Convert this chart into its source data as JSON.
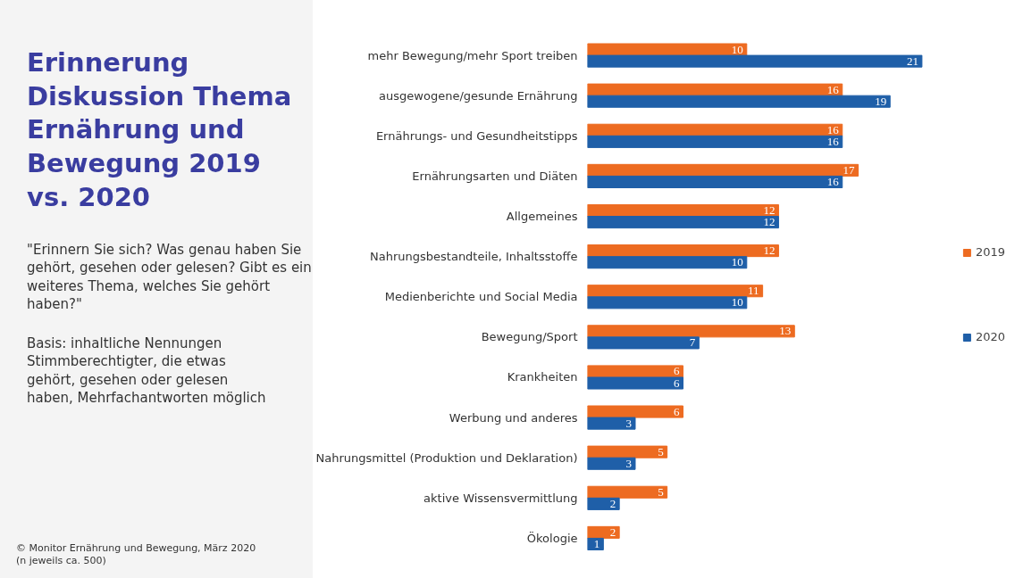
{
  "chart_data": {
    "type": "bar",
    "orientation": "horizontal",
    "title": "Erinnerung Diskussion Thema Ernährung und Bewegung 2019 vs. 2020",
    "subtitle": "\"Erinnern Sie sich? Was genau haben Sie gehört, gesehen oder gelesen? Gibt es ein weiteres Thema, welches Sie gehört haben?\"",
    "annotations": [
      "Basis: inhaltliche Nennungen Stimmberechtigter, die etwas gehört, gesehen oder gelesen haben, Mehrfachantworten möglich",
      "© Monitor Ernährung und Bewegung, März 2020 (n jeweils ca. 500)"
    ],
    "categories": [
      "mehr Bewegung/mehr Sport treiben",
      "ausgewogene/gesunde Ernährung",
      "Ernährungs- und Gesundheitstipps",
      "Ernährungsarten und Diäten",
      "Allgemeines",
      "Nahrungsbestandteile, Inhaltsstoffe",
      "Medienberichte und Social Media",
      "Bewegung/Sport",
      "Krankheiten",
      "Werbung und anderes",
      "Nahrungsmittel (Produktion und Deklaration)",
      "aktive Wissensvermittlung",
      "Ökologie"
    ],
    "series": [
      {
        "name": "2019",
        "color": "#ed6b21",
        "values": [
          10,
          16,
          16,
          17,
          12,
          12,
          11,
          13,
          6,
          6,
          5,
          5,
          2
        ]
      },
      {
        "name": "2020",
        "color": "#1f5fa8",
        "values": [
          21,
          19,
          16,
          16,
          12,
          10,
          10,
          7,
          6,
          3,
          3,
          2,
          1
        ]
      }
    ],
    "data_labels": true,
    "legend": "right",
    "grid": false
  }
}
